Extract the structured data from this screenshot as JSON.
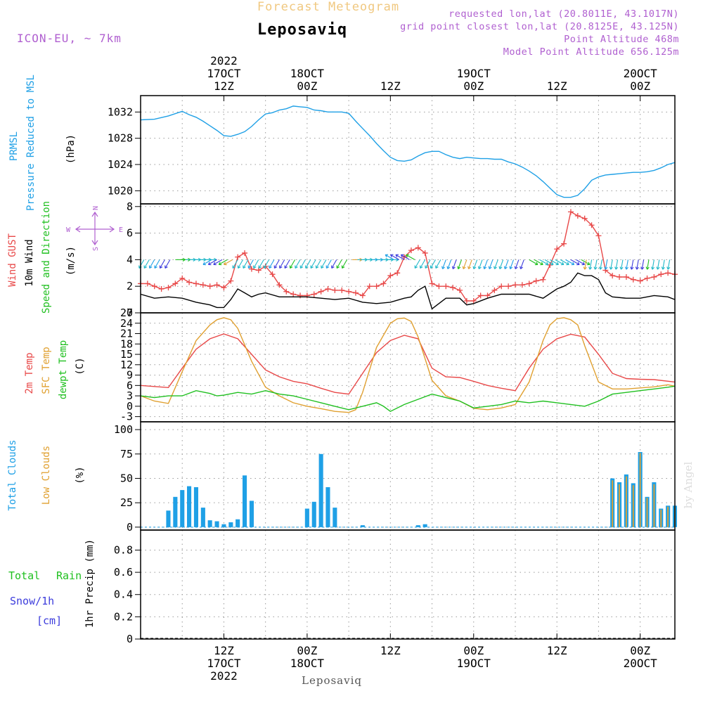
{
  "header": {
    "supertitle": "Forecast Meteogram",
    "title": "Leposaviq",
    "model": "ICON-EU, ~ 7km",
    "requested": "requested lon,lat (20.8011E, 43.1017N)",
    "grid_point": "grid point closest lon,lat (20.8125E, 43.125N)",
    "point_alt": "Point Altitude 468m",
    "model_alt": "Model Point Altitude 656.125m",
    "footer": "Leposaviq",
    "credit": "by Angel"
  },
  "colors": {
    "pressure": "#1fa0e6",
    "gust": "#e84848",
    "wind": "#000000",
    "temp2m": "#e84848",
    "sfc": "#e0a030",
    "dew": "#20c020",
    "cloud_total": "#1fa0e6",
    "cloud_low": "#e0a030",
    "rain": "#20c020",
    "snow": "#3c3cdc",
    "meta": "#b060d0",
    "supertitle": "#f0c880"
  },
  "time_axis": {
    "top_ticks": [
      {
        "t": 12,
        "lines": [
          "2022",
          "17OCT",
          "12Z"
        ]
      },
      {
        "t": 24,
        "lines": [
          "18OCT",
          "00Z"
        ]
      },
      {
        "t": 36,
        "lines": [
          "12Z"
        ]
      },
      {
        "t": 48,
        "lines": [
          "19OCT",
          "00Z"
        ]
      },
      {
        "t": 60,
        "lines": [
          "12Z"
        ]
      },
      {
        "t": 72,
        "lines": [
          "20OCT",
          "00Z"
        ]
      }
    ],
    "bottom_ticks": [
      {
        "t": 12,
        "lines": [
          "12Z",
          "17OCT",
          "2022"
        ]
      },
      {
        "t": 24,
        "lines": [
          "00Z",
          "18OCT"
        ]
      },
      {
        "t": 36,
        "lines": [
          "12Z"
        ]
      },
      {
        "t": 48,
        "lines": [
          "00Z",
          "19OCT"
        ]
      },
      {
        "t": 60,
        "lines": [
          "12Z"
        ]
      },
      {
        "t": 72,
        "lines": [
          "00Z",
          "20OCT"
        ]
      }
    ],
    "range_hours": [
      0,
      77
    ]
  },
  "chart_data": [
    {
      "type": "line",
      "panel": "pressure",
      "labels": {
        "a": "PRMSL",
        "b": "Pressure Reduced to MSL",
        "unit": "(hPa)"
      },
      "ylim": [
        1018,
        1034.5
      ],
      "yticks": [
        1020,
        1024,
        1028,
        1032
      ],
      "series": [
        {
          "name": "PRMSL",
          "color": "#1fa0e6",
          "x": [
            0,
            2,
            4,
            6,
            7,
            8,
            9,
            10,
            11,
            12,
            13,
            14,
            15,
            16,
            17,
            18,
            19,
            20,
            21,
            22,
            23,
            24,
            25,
            26,
            27,
            28,
            29,
            30,
            31,
            32,
            33,
            34,
            35,
            36,
            37,
            38,
            39,
            40,
            41,
            42,
            43,
            44,
            45,
            46,
            47,
            48,
            49,
            50,
            51,
            52,
            53,
            54,
            55,
            56,
            57,
            58,
            59,
            60,
            61,
            62,
            63,
            64,
            65,
            66,
            67,
            68,
            69,
            70,
            71,
            72,
            73,
            74,
            75,
            76,
            77
          ],
          "y": [
            1030.8,
            1030.9,
            1031.4,
            1032.1,
            1031.6,
            1031.2,
            1030.6,
            1029.9,
            1029.2,
            1028.4,
            1028.3,
            1028.6,
            1029.0,
            1029.8,
            1030.8,
            1031.7,
            1031.9,
            1032.3,
            1032.5,
            1032.9,
            1032.8,
            1032.7,
            1032.3,
            1032.2,
            1032.0,
            1032.0,
            1032.0,
            1031.8,
            1030.6,
            1029.5,
            1028.4,
            1027.2,
            1026.1,
            1025.1,
            1024.6,
            1024.5,
            1024.7,
            1025.3,
            1025.8,
            1026.0,
            1026.0,
            1025.5,
            1025.1,
            1024.9,
            1025.1,
            1025.0,
            1024.9,
            1024.9,
            1024.8,
            1024.8,
            1024.4,
            1024.1,
            1023.6,
            1023.0,
            1022.3,
            1021.4,
            1020.4,
            1019.4,
            1019.0,
            1019.0,
            1019.3,
            1020.3,
            1021.6,
            1022.1,
            1022.4,
            1022.5,
            1022.6,
            1022.7,
            1022.8,
            1022.8,
            1022.9,
            1023.1,
            1023.5,
            1024.0,
            1024.3
          ]
        }
      ]
    },
    {
      "type": "line",
      "panel": "wind",
      "labels": {
        "a": "Wind GUST",
        "b": "10m Wind",
        "c": "Speed and Direction",
        "unit": "(m/s)",
        "compass": [
          "N",
          "W",
          "E",
          "S"
        ]
      },
      "ylim": [
        0,
        8.2
      ],
      "yticks": [
        0,
        2,
        4,
        6,
        8
      ],
      "series": [
        {
          "name": "Wind GUST",
          "color": "#e84848",
          "marker": "+",
          "x": [
            0,
            1,
            2,
            3,
            4,
            5,
            6,
            7,
            8,
            9,
            10,
            11,
            12,
            13,
            14,
            15,
            16,
            17,
            18,
            19,
            20,
            21,
            22,
            23,
            24,
            25,
            26,
            27,
            28,
            29,
            30,
            31,
            32,
            33,
            34,
            35,
            36,
            37,
            38,
            39,
            40,
            41,
            42,
            43,
            44,
            45,
            46,
            47,
            48,
            49,
            50,
            51,
            52,
            53,
            54,
            55,
            56,
            57,
            58,
            59,
            60,
            61,
            62,
            63,
            64,
            65,
            66,
            67,
            68,
            69,
            70,
            71,
            72,
            73,
            74,
            75,
            76,
            77
          ],
          "y": [
            2.2,
            2.2,
            2.0,
            1.8,
            1.9,
            2.2,
            2.6,
            2.3,
            2.2,
            2.1,
            2.0,
            2.1,
            1.9,
            2.4,
            4.2,
            4.5,
            3.3,
            3.2,
            3.5,
            2.9,
            2.1,
            1.6,
            1.4,
            1.3,
            1.3,
            1.4,
            1.6,
            1.8,
            1.7,
            1.7,
            1.6,
            1.5,
            1.3,
            2.0,
            2.0,
            2.2,
            2.8,
            3.0,
            4.2,
            4.7,
            4.9,
            4.5,
            2.2,
            2.0,
            2.0,
            1.9,
            1.7,
            0.9,
            0.9,
            1.3,
            1.3,
            1.7,
            2.0,
            2.0,
            2.1,
            2.1,
            2.2,
            2.4,
            2.5,
            3.6,
            4.8,
            5.2,
            7.6,
            7.3,
            7.1,
            6.6,
            5.8,
            3.2,
            2.8,
            2.7,
            2.7,
            2.5,
            2.4,
            2.6,
            2.7,
            2.9,
            3.0,
            2.9
          ]
        },
        {
          "name": "10m Wind",
          "color": "#000000",
          "x": [
            0,
            2,
            4,
            6,
            8,
            10,
            11,
            12,
            13,
            14,
            15,
            16,
            17,
            18,
            20,
            22,
            24,
            26,
            28,
            30,
            32,
            34,
            36,
            38,
            39,
            40,
            41,
            42,
            44,
            46,
            47,
            48,
            50,
            52,
            54,
            56,
            58,
            60,
            61,
            62,
            63,
            64,
            65,
            66,
            67,
            68,
            70,
            72,
            74,
            76,
            77
          ],
          "y": [
            1.4,
            1.1,
            1.2,
            1.1,
            0.8,
            0.6,
            0.4,
            0.4,
            1.0,
            1.8,
            1.5,
            1.2,
            1.4,
            1.5,
            1.2,
            1.2,
            1.2,
            1.1,
            1.0,
            1.1,
            0.8,
            0.7,
            0.8,
            1.1,
            1.2,
            1.7,
            2.0,
            0.3,
            1.1,
            1.1,
            0.6,
            0.7,
            1.1,
            1.4,
            1.4,
            1.4,
            1.1,
            1.8,
            2.0,
            2.3,
            3.0,
            2.8,
            2.8,
            2.5,
            1.5,
            1.2,
            1.1,
            1.1,
            1.3,
            1.2,
            1.0
          ]
        }
      ]
    },
    {
      "type": "line",
      "panel": "temperature",
      "labels": {
        "a": "2m Temp",
        "b": "SFC Temp",
        "c": "dewpt Temp",
        "unit": "(C)"
      },
      "ylim": [
        -4.5,
        27
      ],
      "yticks": [
        -3,
        0,
        3,
        6,
        9,
        12,
        15,
        18,
        21,
        24,
        27
      ],
      "series": [
        {
          "name": "2m Temp",
          "color": "#e84848",
          "x": [
            0,
            2,
            4,
            6,
            8,
            10,
            12,
            14,
            16,
            18,
            20,
            22,
            24,
            26,
            28,
            30,
            32,
            34,
            36,
            38,
            40,
            42,
            44,
            46,
            48,
            50,
            52,
            54,
            56,
            58,
            60,
            62,
            64,
            66,
            68,
            70,
            72,
            74,
            77
          ],
          "y": [
            6.0,
            5.7,
            5.4,
            11.0,
            16.5,
            19.5,
            20.9,
            19.5,
            15.0,
            10.5,
            8.5,
            7.2,
            6.5,
            5.2,
            4.0,
            3.5,
            9.5,
            15.5,
            19.0,
            20.5,
            19.5,
            11.0,
            8.5,
            8.3,
            7.2,
            6.0,
            5.2,
            4.5,
            11.0,
            16.5,
            19.5,
            20.8,
            20.0,
            15.0,
            9.5,
            8.0,
            7.8,
            7.7,
            7.0
          ]
        },
        {
          "name": "SFC Temp",
          "color": "#e0a030",
          "x": [
            0,
            2,
            4,
            6,
            8,
            10,
            11,
            12,
            13,
            14,
            16,
            18,
            20,
            22,
            24,
            26,
            28,
            30,
            31,
            32,
            34,
            36,
            37,
            38,
            39,
            40,
            42,
            44,
            46,
            48,
            50,
            52,
            54,
            56,
            58,
            59,
            60,
            61,
            62,
            63,
            64,
            66,
            68,
            70,
            72,
            74,
            76,
            77
          ],
          "y": [
            3.0,
            1.5,
            0.8,
            10.0,
            19.0,
            23.5,
            25.0,
            25.6,
            25.0,
            22.5,
            13.0,
            5.5,
            3.0,
            1.0,
            0.0,
            -0.7,
            -1.5,
            -1.8,
            -1.0,
            4.0,
            17.0,
            24.0,
            25.3,
            25.5,
            24.5,
            20.0,
            7.5,
            3.0,
            1.5,
            -0.6,
            -1.0,
            -0.5,
            0.5,
            7.0,
            19.0,
            23.5,
            25.3,
            25.6,
            25.0,
            23.5,
            17.5,
            7.0,
            5.0,
            5.0,
            5.3,
            5.6,
            6.2,
            5.8
          ]
        },
        {
          "name": "dewpt Temp",
          "color": "#20c020",
          "x": [
            0,
            2,
            4,
            6,
            8,
            10,
            11,
            12,
            14,
            16,
            18,
            20,
            22,
            24,
            26,
            28,
            30,
            32,
            34,
            35,
            36,
            38,
            40,
            42,
            44,
            46,
            48,
            50,
            52,
            54,
            56,
            58,
            60,
            62,
            64,
            66,
            68,
            70,
            72,
            74,
            76,
            77
          ],
          "y": [
            3.0,
            2.5,
            3.0,
            3.0,
            4.5,
            3.7,
            3.0,
            3.2,
            4.0,
            3.5,
            4.5,
            3.5,
            3.0,
            2.0,
            1.0,
            0.0,
            -1.0,
            0.0,
            1.0,
            0.0,
            -1.5,
            0.5,
            2.0,
            3.5,
            2.5,
            1.5,
            -0.5,
            0.0,
            0.5,
            1.5,
            1.0,
            1.5,
            1.0,
            0.5,
            0.0,
            1.5,
            3.5,
            4.0,
            4.5,
            5.0,
            5.5,
            5.8
          ]
        }
      ]
    },
    {
      "type": "bar",
      "panel": "clouds",
      "labels": {
        "a": "Total Clouds",
        "b": "Low Clouds",
        "unit": "(%)"
      },
      "ylim": [
        -3,
        108
      ],
      "yticks": [
        0,
        25,
        50,
        75,
        100
      ],
      "series": [
        {
          "name": "Total Clouds",
          "color": "#1fa0e6",
          "x": [
            4,
            5,
            6,
            7,
            8,
            9,
            10,
            11,
            12,
            13,
            14,
            15,
            16,
            17,
            24,
            25,
            26,
            27,
            28,
            32,
            40,
            41,
            68,
            69,
            70,
            71,
            72,
            73,
            74,
            75,
            76,
            77
          ],
          "values": [
            17,
            31,
            38,
            42,
            41,
            20,
            7,
            6,
            3,
            5,
            8,
            53,
            27,
            0,
            19,
            26,
            75,
            41,
            20,
            2,
            2,
            3,
            50,
            46,
            54,
            45,
            77,
            31,
            46,
            19,
            22,
            22
          ]
        },
        {
          "name": "Low Clouds",
          "color": "#e0a030",
          "x": [
            68,
            69,
            70,
            71,
            72,
            73,
            74,
            75,
            76,
            77
          ],
          "values": [
            48,
            44,
            52,
            43,
            76,
            30,
            44,
            18,
            21,
            21
          ]
        }
      ]
    },
    {
      "type": "bar",
      "panel": "precip",
      "labels": {
        "a": "Total",
        "b": "Rain",
        "c": "Snow/1h",
        "d": "[cm]",
        "unit": "1hr Precip (mm)"
      },
      "ylim": [
        0,
        0.98
      ],
      "yticks": [
        0,
        0.2,
        0.4,
        0.6,
        0.8
      ],
      "ytick_labels": [
        "0",
        "0.2",
        "0.4",
        "0.6",
        "0.8"
      ],
      "series": [
        {
          "name": "Total Rain",
          "color": "#20c020",
          "values": []
        },
        {
          "name": "Snow/1h",
          "color": "#3c3cdc",
          "values": []
        }
      ]
    }
  ]
}
